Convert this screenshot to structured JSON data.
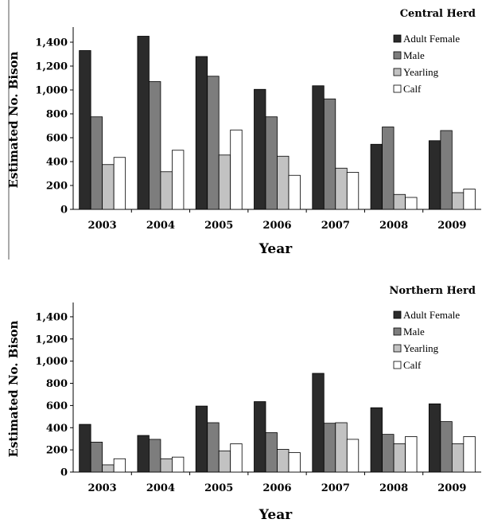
{
  "chart_data": [
    {
      "type": "bar",
      "title": "Central Herd",
      "xlabel": "Year",
      "ylabel": "Estimated No. Bison",
      "ylim": [
        0,
        1500
      ],
      "yticks": [
        "0",
        "200",
        "400",
        "600",
        "800",
        "1,000",
        "1,200",
        "1,400"
      ],
      "categories": [
        "2003",
        "2004",
        "2005",
        "2006",
        "2007",
        "2008",
        "2009"
      ],
      "legend_position": "top-right",
      "series": [
        {
          "name": "Adult Female",
          "color": "#2b2b2b",
          "values": [
            1330,
            1450,
            1280,
            1005,
            1035,
            545,
            575
          ]
        },
        {
          "name": "Male",
          "color": "#7d7d7d",
          "values": [
            775,
            1070,
            1115,
            775,
            925,
            690,
            660
          ]
        },
        {
          "name": "Yearling",
          "color": "#c2c2c2",
          "values": [
            375,
            315,
            455,
            445,
            345,
            125,
            140
          ]
        },
        {
          "name": "Calf",
          "color": "#ffffff",
          "values": [
            435,
            495,
            665,
            285,
            310,
            100,
            170
          ]
        }
      ]
    },
    {
      "type": "bar",
      "title": "Northern Herd",
      "xlabel": "Year",
      "ylabel": "Estimated No. Bison",
      "ylim": [
        0,
        1500
      ],
      "yticks": [
        "0",
        "200",
        "400",
        "600",
        "800",
        "1,000",
        "1,200",
        "1,400"
      ],
      "categories": [
        "2003",
        "2004",
        "2005",
        "2006",
        "2007",
        "2008",
        "2009"
      ],
      "legend_position": "top-right",
      "series": [
        {
          "name": "Adult Female",
          "color": "#2b2b2b",
          "values": [
            430,
            330,
            595,
            635,
            890,
            580,
            615
          ]
        },
        {
          "name": "Male",
          "color": "#7d7d7d",
          "values": [
            270,
            295,
            445,
            355,
            440,
            340,
            455
          ]
        },
        {
          "name": "Yearling",
          "color": "#c2c2c2",
          "values": [
            65,
            120,
            190,
            205,
            445,
            255,
            255
          ]
        },
        {
          "name": "Calf",
          "color": "#ffffff",
          "values": [
            120,
            135,
            255,
            175,
            295,
            320,
            320
          ]
        }
      ]
    }
  ]
}
